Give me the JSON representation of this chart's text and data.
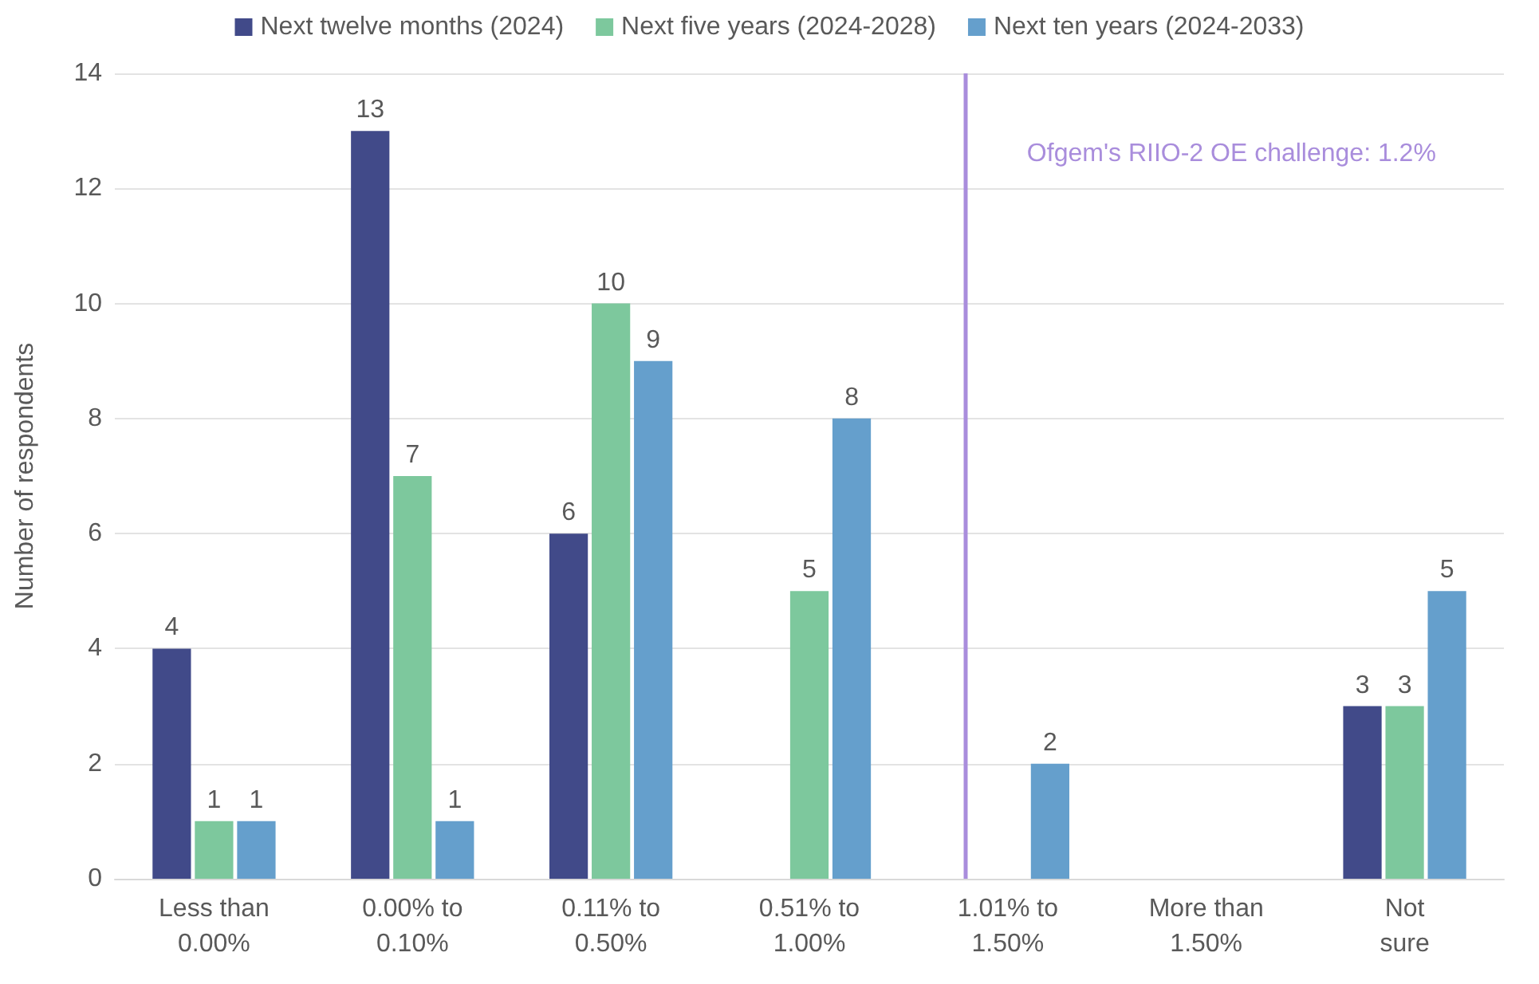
{
  "chart_data": {
    "type": "bar",
    "ylabel": "Number of respondents",
    "categories": [
      "Less than 0.00%",
      "0.00% to 0.10%",
      "0.11% to 0.50%",
      "0.51% to 1.00%",
      "1.01% to 1.50%",
      "More than 1.50%",
      "Not sure"
    ],
    "series": [
      {
        "name": "Next twelve months (2024)",
        "color": "#414a89",
        "values": [
          4,
          13,
          6,
          0,
          0,
          0,
          3
        ],
        "value_labels": [
          "4",
          "13",
          "6",
          null,
          null,
          null,
          "3"
        ]
      },
      {
        "name": "Next five years (2024-2028)",
        "color": "#7dc89d",
        "values": [
          1,
          7,
          10,
          5,
          0,
          0,
          3
        ],
        "value_labels": [
          "1",
          "7",
          "10",
          "5",
          null,
          null,
          "3"
        ]
      },
      {
        "name": "Next ten years (2024-2033)",
        "color": "#659fcc",
        "values": [
          1,
          1,
          9,
          8,
          2,
          0,
          5
        ],
        "value_labels": [
          "1",
          "1",
          "9",
          "8",
          "2",
          null,
          "5"
        ]
      }
    ],
    "ylim": [
      0,
      14
    ],
    "yticks": [
      0,
      2,
      4,
      6,
      8,
      10,
      12,
      14
    ],
    "grid": "y",
    "legend": "top",
    "ref_lines": [
      {
        "axis": "x",
        "value": "1.01% to 1.50%",
        "label": "Ofgem's RIIO-2 OE challenge: 1.2%",
        "color": "#a98ddc"
      }
    ]
  }
}
